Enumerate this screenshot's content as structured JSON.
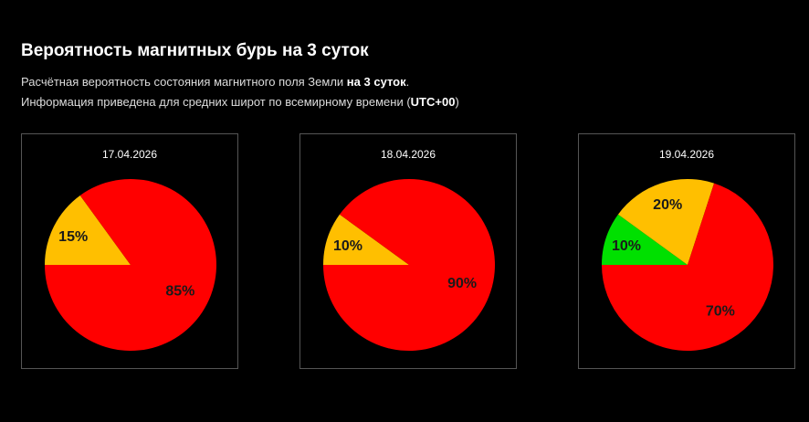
{
  "header": {
    "title": "Вероятность магнитных бурь на 3 суток",
    "line1_text": "Расчётная вероятность состояния магнитного поля Земли ",
    "line1_bold": "на 3 суток",
    "line1_end": ".",
    "line2_text": "Информация приведена для средних широт по всемирному времени (",
    "line2_bold": "UTC+00",
    "line2_end": ")"
  },
  "colors": {
    "red": "#ff0000",
    "yellow": "#ffbf00",
    "green": "#00e000"
  },
  "chart_data": [
    {
      "type": "pie",
      "title": "17.04.2026",
      "slices": [
        {
          "label": "15%",
          "value": 15,
          "color": "#ffbf00"
        },
        {
          "label": "85%",
          "value": 85,
          "color": "#ff0000"
        }
      ]
    },
    {
      "type": "pie",
      "title": "18.04.2026",
      "slices": [
        {
          "label": "10%",
          "value": 10,
          "color": "#ffbf00"
        },
        {
          "label": "90%",
          "value": 90,
          "color": "#ff0000"
        }
      ]
    },
    {
      "type": "pie",
      "title": "19.04.2026",
      "slices": [
        {
          "label": "10%",
          "value": 10,
          "color": "#00e000"
        },
        {
          "label": "20%",
          "value": 20,
          "color": "#ffbf00"
        },
        {
          "label": "70%",
          "value": 70,
          "color": "#ff0000"
        }
      ]
    }
  ]
}
